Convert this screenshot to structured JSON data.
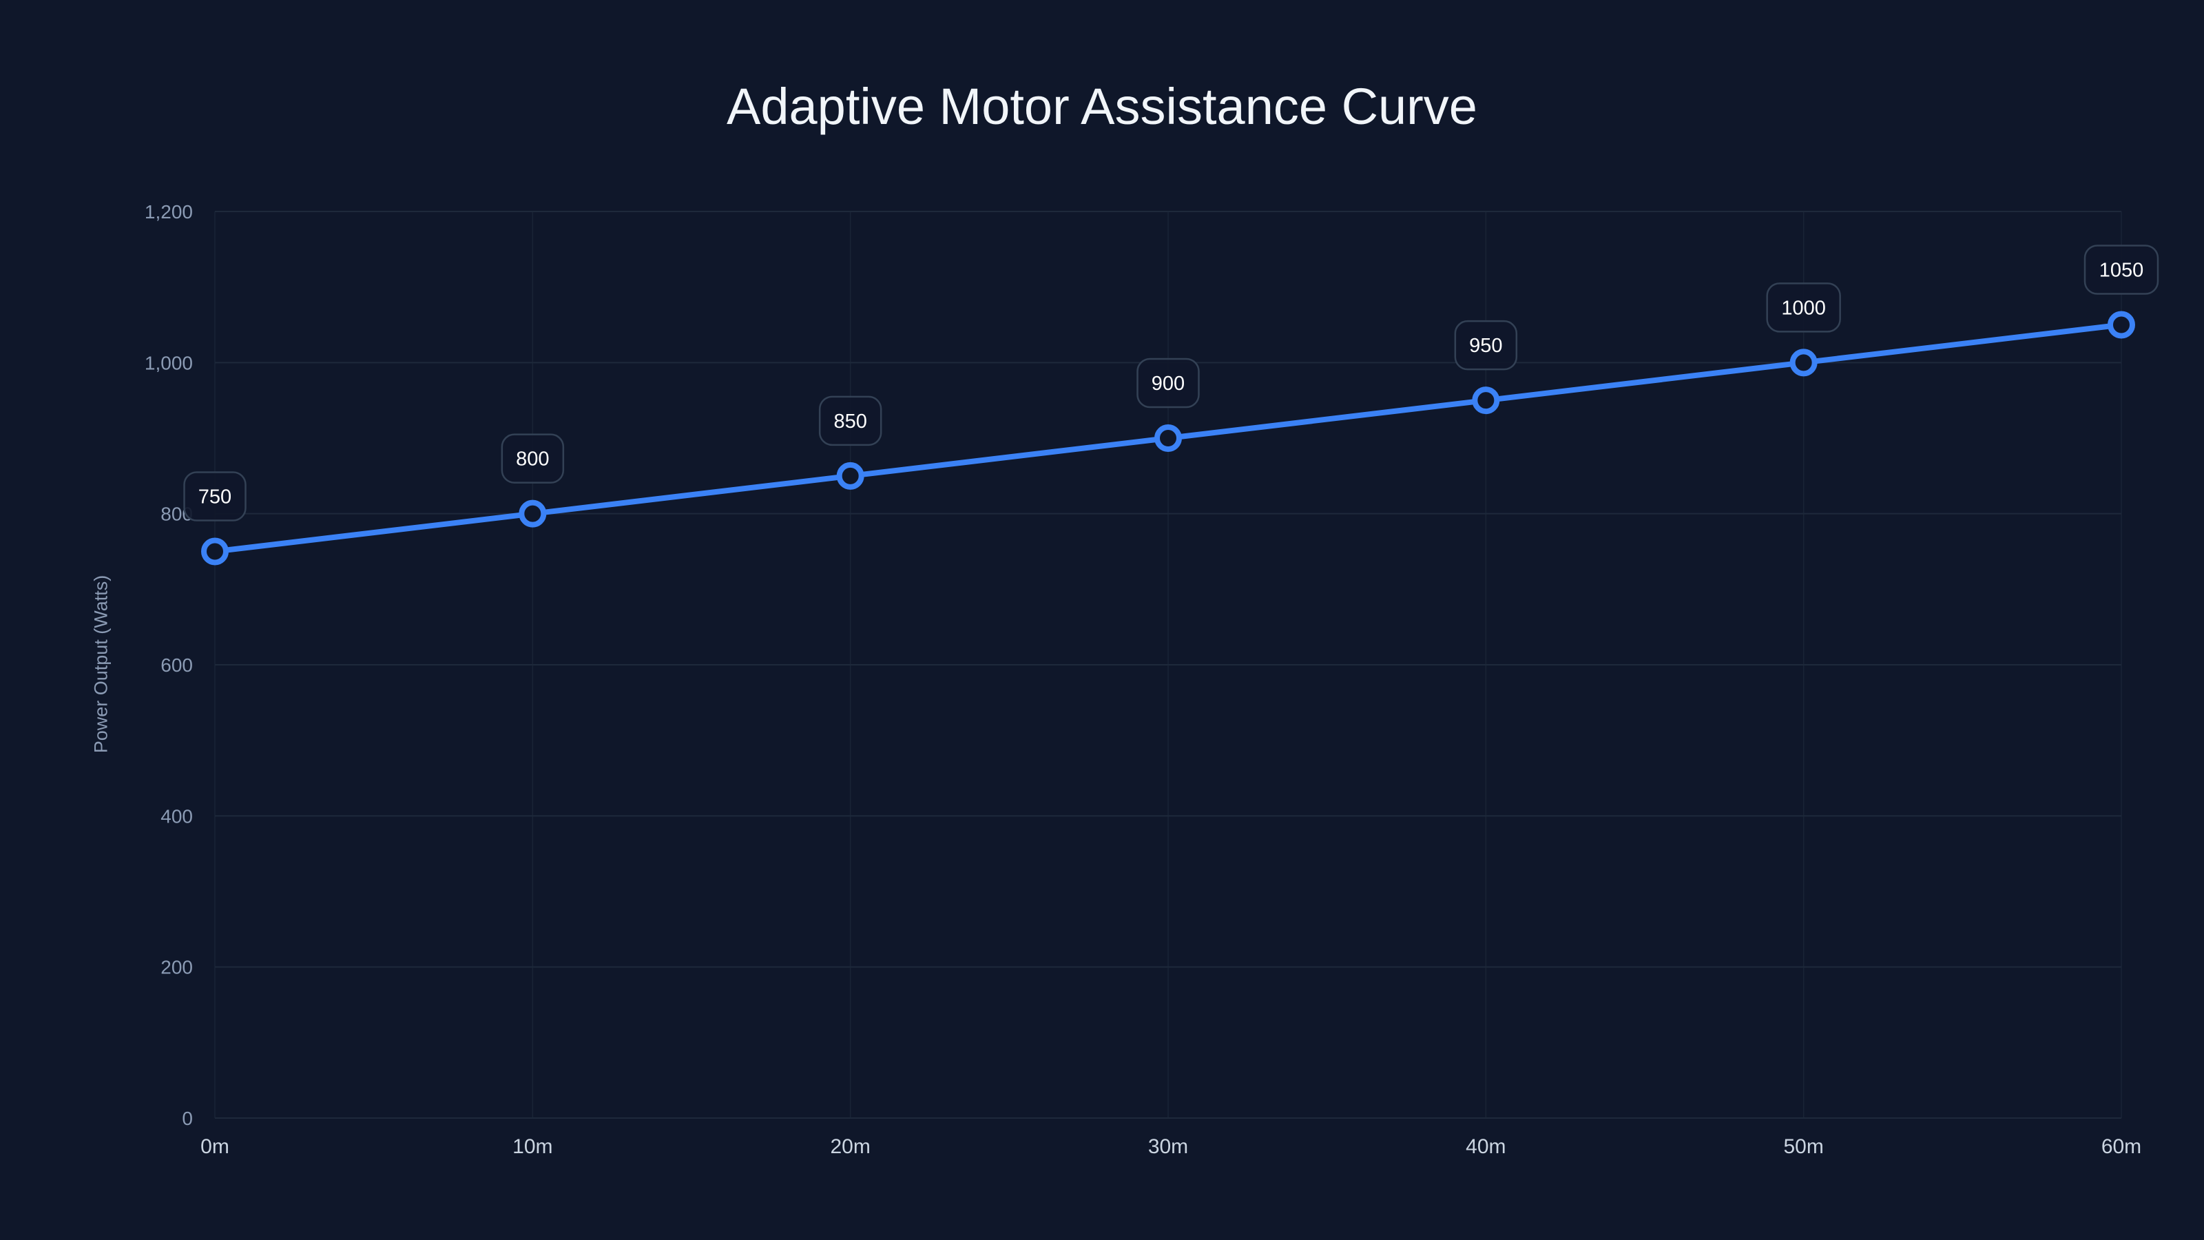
{
  "chart": {
    "title": "Adaptive Motor Assistance Curve",
    "y_axis_label": "Power Output (Watts)",
    "colors": {
      "background": "#0f172a",
      "gridline": "#1e293b",
      "series": "#3b82f6",
      "label_border": "#334155",
      "label_text": "#ffffff",
      "y_tick_text": "#8b9bb4",
      "x_tick_text": "#cbd5e1",
      "title_text": "#f1f5f9"
    }
  },
  "chart_data": {
    "type": "line",
    "title": "Adaptive Motor Assistance Curve",
    "xlabel": "",
    "ylabel": "Power Output (Watts)",
    "categories": [
      "0m",
      "10m",
      "20m",
      "30m",
      "40m",
      "50m",
      "60m"
    ],
    "x": [
      0,
      10,
      20,
      30,
      40,
      50,
      60
    ],
    "series": [
      {
        "name": "Power Output",
        "values": [
          750,
          800,
          850,
          900,
          950,
          1000,
          1050
        ]
      }
    ],
    "data_labels": [
      "750",
      "800",
      "850",
      "900",
      "950",
      "1000",
      "1050"
    ],
    "y_ticks": [
      0,
      200,
      400,
      600,
      800,
      1000,
      1200
    ],
    "y_tick_labels": [
      "0",
      "200",
      "400",
      "600",
      "800",
      "1,000",
      "1,200"
    ],
    "ylim": [
      0,
      1200
    ],
    "xlim": [
      0,
      60
    ],
    "grid": true,
    "legend": null
  }
}
